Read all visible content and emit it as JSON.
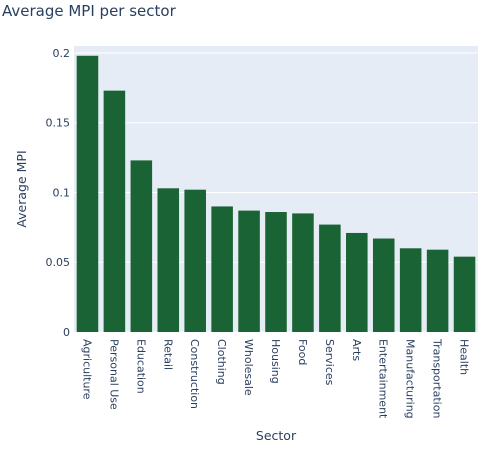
{
  "chart_data": {
    "type": "bar",
    "title": "Average MPI per sector",
    "xlabel": "Sector",
    "ylabel": "Average MPI",
    "ylim": [
      0,
      0.205
    ],
    "yticks": [
      0,
      0.05,
      0.1,
      0.15,
      0.2
    ],
    "ytick_labels": [
      "0",
      "0.05",
      "0.1",
      "0.15",
      "0.2"
    ],
    "grid": true,
    "categories": [
      "Agriculture",
      "Personal Use",
      "Education",
      "Retail",
      "Construction",
      "Clothing",
      "Wholesale",
      "Housing",
      "Food",
      "Services",
      "Arts",
      "Entertainment",
      "Manufacturing",
      "Transportation",
      "Health"
    ],
    "values": [
      0.198,
      0.173,
      0.123,
      0.103,
      0.102,
      0.09,
      0.087,
      0.086,
      0.085,
      0.077,
      0.071,
      0.067,
      0.06,
      0.059,
      0.054
    ],
    "colors": {
      "bar": "#1a6334",
      "plot_bg": "#e5ecf6",
      "grid": "#ffffff",
      "text": "#2a3f5f"
    }
  }
}
